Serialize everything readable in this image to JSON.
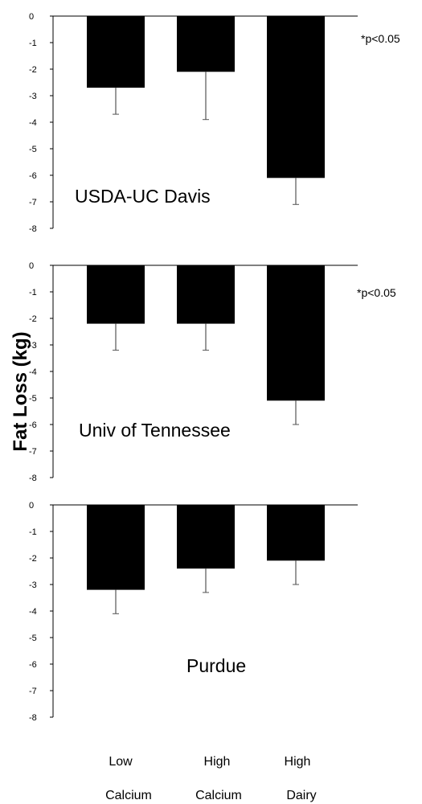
{
  "chart_data": [
    {
      "type": "bar",
      "title": "USDA-UC Davis",
      "annotation": "*p<0.05",
      "categories": [
        "Low Calcium",
        "High Calcium",
        "High Dairy"
      ],
      "values": [
        -2.7,
        -2.1,
        -6.1
      ],
      "errors": [
        1.0,
        1.8,
        1.0
      ],
      "ylim": [
        -8,
        0
      ],
      "yticks": [
        "0",
        "-1",
        "-2",
        "-3",
        "-4",
        "-5",
        "-6",
        "-7",
        "-8"
      ]
    },
    {
      "type": "bar",
      "title": "Univ of Tennessee",
      "annotation": "*p<0.05",
      "categories": [
        "Low Calcium",
        "High Calcium",
        "High Dairy"
      ],
      "values": [
        -2.2,
        -2.2,
        -5.1
      ],
      "errors": [
        1.0,
        1.0,
        0.9
      ],
      "ylim": [
        -8,
        0
      ],
      "yticks": [
        "0",
        "-1",
        "-2",
        "-3",
        "-4",
        "-5",
        "-6",
        "-7",
        "-8"
      ]
    },
    {
      "type": "bar",
      "title": "Purdue",
      "annotation": "",
      "categories": [
        "Low Calcium",
        "High Calcium",
        "High Dairy"
      ],
      "values": [
        -3.2,
        -2.4,
        -2.1
      ],
      "errors": [
        0.9,
        0.9,
        0.9
      ],
      "ylim": [
        -8,
        0
      ],
      "yticks": [
        "0",
        "-1",
        "-2",
        "-3",
        "-4",
        "-5",
        "-6",
        "-7",
        "-8"
      ]
    }
  ],
  "ylabel": "Fat Loss (kg)",
  "category_labels": [
    {
      "line1": "Low",
      "line2": "Calcium"
    },
    {
      "line1": "High",
      "line2": "Calcium"
    },
    {
      "line1": "High",
      "line2": "Dairy"
    }
  ],
  "colors": {
    "bar": "#000000",
    "axis": "#000000",
    "error": "#555555"
  }
}
